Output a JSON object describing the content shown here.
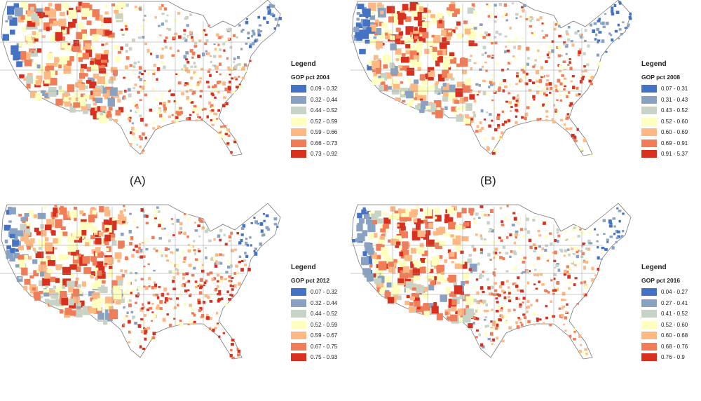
{
  "colors": [
    "#4472c4",
    "#8aa2c2",
    "#c7d3c6",
    "#ffffc0",
    "#fdb883",
    "#f07c58",
    "#d7301f"
  ],
  "panels": [
    {
      "label": "(A)",
      "legend_title": "Legend",
      "field": "GOP pct 2004",
      "ranges": [
        "0.09 - 0.32",
        "0.32 - 0.44",
        "0.44 - 0.52",
        "0.52 - 0.59",
        "0.59 - 0.66",
        "0.66 - 0.73",
        "0.73 - 0.92"
      ]
    },
    {
      "label": "(B)",
      "legend_title": "Legend",
      "field": "GOP pct 2008",
      "ranges": [
        "0.07 - 0.31",
        "0.31 - 0.43",
        "0.43 - 0.52",
        "0.52 - 0.60",
        "0.60 - 0.69",
        "0.69 - 0.91",
        "0.91 - 5.37"
      ]
    },
    {
      "legend_title": "Legend",
      "field": "GOP pct 2012",
      "ranges": [
        "0.07 - 0.32",
        "0.32 - 0.44",
        "0.44 - 0.52",
        "0.52 - 0.59",
        "0.59 - 0.67",
        "0.67 - 0.75",
        "0.75 - 0.93"
      ]
    },
    {
      "legend_title": "Legend",
      "field": "GOP pct 2016",
      "ranges": [
        "0.04 - 0.27",
        "0.27 - 0.41",
        "0.41 - 0.52",
        "0.52 - 0.60",
        "0.60 - 0.68",
        "0.68 - 0.76",
        "0.76 - 0.9"
      ]
    }
  ]
}
